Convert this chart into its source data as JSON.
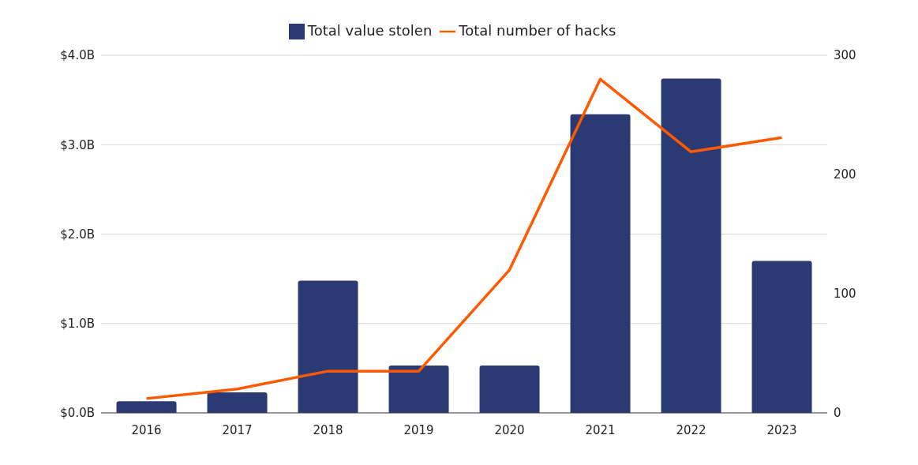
{
  "chart_data": {
    "type": "bar",
    "categories": [
      "2016",
      "2017",
      "2018",
      "2019",
      "2020",
      "2021",
      "2022",
      "2023"
    ],
    "series": [
      {
        "name": "Total value stolen",
        "color": "#2b3a73",
        "values": [
          0.13,
          0.23,
          1.48,
          0.53,
          0.53,
          3.34,
          3.74,
          1.7
        ]
      },
      {
        "name": "Total number of hacks",
        "type": "line",
        "axis": "y2",
        "color": "#ff5a00",
        "values": [
          12,
          20,
          35,
          35,
          120,
          280,
          219,
          231
        ]
      }
    ],
    "ylim": [
      0,
      4
    ],
    "yticks": [
      {
        "value": 0,
        "label": "$0.0B"
      },
      {
        "value": 1,
        "label": "$1.0B"
      },
      {
        "value": 2,
        "label": "$2.0B"
      },
      {
        "value": 3,
        "label": "$3.0B"
      },
      {
        "value": 4,
        "label": "$4.0B"
      }
    ],
    "y2lim": [
      0,
      300
    ],
    "y2ticks": [
      0,
      100,
      200,
      300
    ],
    "grid": "y",
    "legend": "top",
    "marker": "none",
    "line_style": "solid"
  }
}
